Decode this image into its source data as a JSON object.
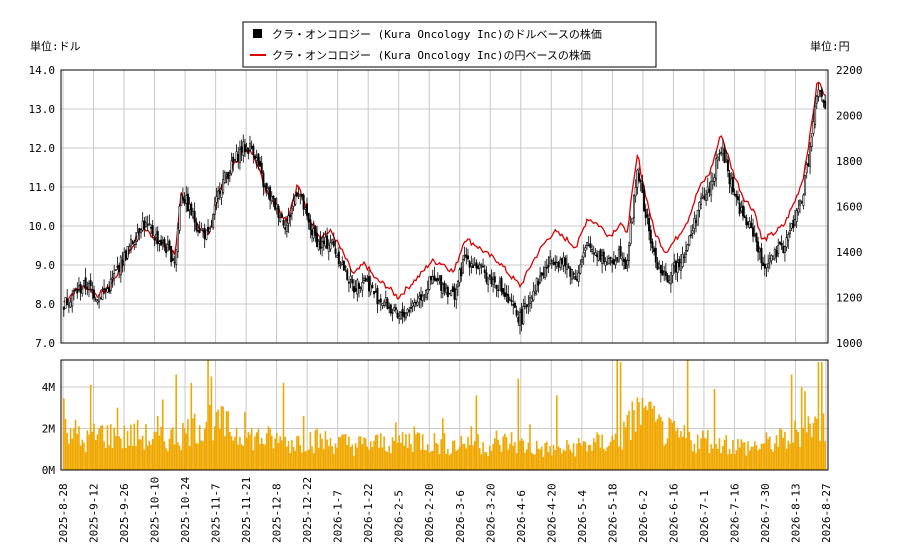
{
  "chart_data": [
    {
      "type": "candlestick",
      "legend": [
        {
          "label": "クラ・オンコロジー (Kura Oncology Inc)のドルベースの株価",
          "color": "#000000",
          "marker": "square"
        },
        {
          "label": "クラ・オンコロジー (Kura Oncology Inc)の円ベースの株価",
          "color": "#dd0000",
          "marker": "line"
        }
      ],
      "left_unit": "単位:ドル",
      "right_unit": "単位:円",
      "y_left": {
        "min": 7.0,
        "max": 14.0,
        "ticks": [
          "7.0",
          "8.0",
          "9.0",
          "10.0",
          "11.0",
          "12.0",
          "13.0",
          "14.0"
        ]
      },
      "y_right": {
        "min": 1000,
        "max": 2200,
        "ticks": [
          "1000",
          "1200",
          "1400",
          "1600",
          "1800",
          "2000",
          "2200"
        ]
      },
      "grid": true,
      "dollar_close_keypoints": [
        [
          0,
          8.0
        ],
        [
          6,
          8.3
        ],
        [
          12,
          8.5
        ],
        [
          18,
          8.2
        ],
        [
          24,
          8.4
        ],
        [
          30,
          9.0
        ],
        [
          36,
          9.5
        ],
        [
          42,
          10.1
        ],
        [
          48,
          9.8
        ],
        [
          54,
          9.5
        ],
        [
          60,
          9.1
        ],
        [
          63,
          10.9
        ],
        [
          66,
          10.6
        ],
        [
          72,
          10.0
        ],
        [
          78,
          9.7
        ],
        [
          84,
          11.0
        ],
        [
          90,
          11.5
        ],
        [
          96,
          12.0
        ],
        [
          102,
          12.0
        ],
        [
          108,
          11.0
        ],
        [
          114,
          10.5
        ],
        [
          120,
          10.0
        ],
        [
          126,
          11.0
        ],
        [
          132,
          10.0
        ],
        [
          138,
          9.5
        ],
        [
          144,
          9.6
        ],
        [
          150,
          9.0
        ],
        [
          156,
          8.4
        ],
        [
          162,
          8.7
        ],
        [
          168,
          8.2
        ],
        [
          174,
          8.0
        ],
        [
          180,
          7.6
        ],
        [
          186,
          7.9
        ],
        [
          192,
          8.2
        ],
        [
          198,
          8.6
        ],
        [
          204,
          8.5
        ],
        [
          210,
          8.2
        ],
        [
          216,
          9.2
        ],
        [
          222,
          9.0
        ],
        [
          228,
          8.7
        ],
        [
          234,
          8.5
        ],
        [
          240,
          8.0
        ],
        [
          246,
          7.6
        ],
        [
          252,
          8.3
        ],
        [
          258,
          8.8
        ],
        [
          264,
          9.2
        ],
        [
          270,
          9.0
        ],
        [
          276,
          8.7
        ],
        [
          282,
          9.5
        ],
        [
          288,
          9.3
        ],
        [
          294,
          9.0
        ],
        [
          300,
          9.4
        ],
        [
          303,
          9.0
        ],
        [
          309,
          11.5
        ],
        [
          312,
          10.6
        ],
        [
          318,
          9.2
        ],
        [
          324,
          8.6
        ],
        [
          330,
          9.0
        ],
        [
          336,
          9.5
        ],
        [
          342,
          10.5
        ],
        [
          348,
          11.0
        ],
        [
          354,
          12.0
        ],
        [
          360,
          11.0
        ],
        [
          366,
          10.2
        ],
        [
          372,
          9.8
        ],
        [
          376,
          9.0
        ],
        [
          382,
          9.2
        ],
        [
          388,
          9.5
        ],
        [
          394,
          10.2
        ],
        [
          398,
          10.8
        ],
        [
          402,
          12.0
        ],
        [
          406,
          13.5
        ],
        [
          410,
          13.0
        ]
      ],
      "yen_close_keypoints": [
        [
          0,
          1180
        ],
        [
          6,
          1230
        ],
        [
          12,
          1250
        ],
        [
          18,
          1210
        ],
        [
          24,
          1240
        ],
        [
          30,
          1320
        ],
        [
          36,
          1410
        ],
        [
          42,
          1510
        ],
        [
          48,
          1470
        ],
        [
          54,
          1430
        ],
        [
          60,
          1390
        ],
        [
          63,
          1660
        ],
        [
          66,
          1610
        ],
        [
          72,
          1520
        ],
        [
          78,
          1470
        ],
        [
          84,
          1680
        ],
        [
          90,
          1760
        ],
        [
          96,
          1840
        ],
        [
          102,
          1840
        ],
        [
          108,
          1690
        ],
        [
          114,
          1610
        ],
        [
          120,
          1540
        ],
        [
          126,
          1700
        ],
        [
          132,
          1550
        ],
        [
          138,
          1470
        ],
        [
          144,
          1490
        ],
        [
          150,
          1400
        ],
        [
          156,
          1300
        ],
        [
          162,
          1350
        ],
        [
          168,
          1280
        ],
        [
          174,
          1250
        ],
        [
          180,
          1200
        ],
        [
          186,
          1250
        ],
        [
          192,
          1300
        ],
        [
          198,
          1360
        ],
        [
          204,
          1350
        ],
        [
          210,
          1310
        ],
        [
          216,
          1460
        ],
        [
          222,
          1430
        ],
        [
          228,
          1390
        ],
        [
          234,
          1360
        ],
        [
          240,
          1300
        ],
        [
          246,
          1250
        ],
        [
          252,
          1350
        ],
        [
          258,
          1430
        ],
        [
          264,
          1490
        ],
        [
          270,
          1460
        ],
        [
          276,
          1420
        ],
        [
          282,
          1550
        ],
        [
          288,
          1520
        ],
        [
          294,
          1470
        ],
        [
          300,
          1530
        ],
        [
          303,
          1470
        ],
        [
          309,
          1830
        ],
        [
          312,
          1700
        ],
        [
          318,
          1490
        ],
        [
          324,
          1400
        ],
        [
          330,
          1460
        ],
        [
          336,
          1540
        ],
        [
          342,
          1680
        ],
        [
          348,
          1750
        ],
        [
          354,
          1920
        ],
        [
          360,
          1760
        ],
        [
          366,
          1640
        ],
        [
          372,
          1580
        ],
        [
          376,
          1450
        ],
        [
          382,
          1480
        ],
        [
          388,
          1520
        ],
        [
          394,
          1630
        ],
        [
          398,
          1720
        ],
        [
          402,
          1920
        ],
        [
          406,
          2160
        ],
        [
          410,
          2080
        ]
      ]
    },
    {
      "type": "bar",
      "y": {
        "min": 0,
        "max": 5300000,
        "ticks": [
          "0M",
          "2M",
          "4M"
        ]
      },
      "volume_millions_keypoints": [
        [
          0,
          2.6
        ],
        [
          10,
          1.3
        ],
        [
          20,
          1.8
        ],
        [
          30,
          1.5
        ],
        [
          40,
          1.7
        ],
        [
          50,
          1.4
        ],
        [
          60,
          1.6
        ],
        [
          70,
          2.0
        ],
        [
          80,
          2.5
        ],
        [
          90,
          1.9
        ],
        [
          100,
          1.6
        ],
        [
          110,
          1.5
        ],
        [
          120,
          1.3
        ],
        [
          130,
          1.5
        ],
        [
          140,
          1.4
        ],
        [
          150,
          1.3
        ],
        [
          160,
          1.2
        ],
        [
          170,
          1.3
        ],
        [
          180,
          1.4
        ],
        [
          190,
          1.5
        ],
        [
          200,
          1.3
        ],
        [
          210,
          1.2
        ],
        [
          220,
          1.5
        ],
        [
          230,
          1.1
        ],
        [
          240,
          1.4
        ],
        [
          250,
          1.1
        ],
        [
          260,
          1.0
        ],
        [
          270,
          1.0
        ],
        [
          280,
          1.2
        ],
        [
          290,
          1.3
        ],
        [
          300,
          1.5
        ],
        [
          310,
          2.8
        ],
        [
          320,
          2.0
        ],
        [
          330,
          1.6
        ],
        [
          340,
          1.4
        ],
        [
          350,
          1.5
        ],
        [
          360,
          1.2
        ],
        [
          370,
          1.1
        ],
        [
          380,
          1.3
        ],
        [
          390,
          1.5
        ],
        [
          400,
          2.2
        ],
        [
          410,
          2.0
        ]
      ],
      "volume_spikes_millions": [
        [
          16,
          4.1
        ],
        [
          32,
          3.0
        ],
        [
          56,
          2.6
        ],
        [
          59,
          3.4
        ],
        [
          67,
          4.6
        ],
        [
          76,
          4.2
        ],
        [
          86,
          5.3
        ],
        [
          88,
          4.5
        ],
        [
          91,
          2.8
        ],
        [
          108,
          2.8
        ],
        [
          131,
          4.2
        ],
        [
          143,
          2.6
        ],
        [
          198,
          2.3
        ],
        [
          209,
          2.1
        ],
        [
          226,
          2.5
        ],
        [
          246,
          3.6
        ],
        [
          258,
          1.9
        ],
        [
          271,
          4.4
        ],
        [
          278,
          2.2
        ],
        [
          294,
          3.6
        ],
        [
          330,
          5.3
        ],
        [
          332,
          5.2
        ],
        [
          339,
          3.3
        ],
        [
          346,
          3.0
        ],
        [
          350,
          3.3
        ],
        [
          372,
          5.3
        ],
        [
          388,
          3.9
        ],
        [
          434,
          4.6
        ],
        [
          440,
          4.0
        ],
        [
          442,
          3.8
        ],
        [
          450,
          5.2
        ],
        [
          452,
          5.2
        ]
      ],
      "x_labels": [
        "2025-8-28",
        "2025-9-12",
        "2025-9-26",
        "2025-10-10",
        "2025-10-24",
        "2025-11-7",
        "2025-11-21",
        "2025-12-8",
        "2025-12-22",
        "2026-1-7",
        "2026-1-22",
        "2026-2-5",
        "2026-2-20",
        "2026-3-6",
        "2026-3-20",
        "2026-4-6",
        "2026-4-20",
        "2026-5-4",
        "2026-5-18",
        "2026-6-2",
        "2026-6-16",
        "2026-7-1",
        "2026-7-16",
        "2026-7-30",
        "2026-8-13",
        "2026-8-27"
      ]
    }
  ]
}
